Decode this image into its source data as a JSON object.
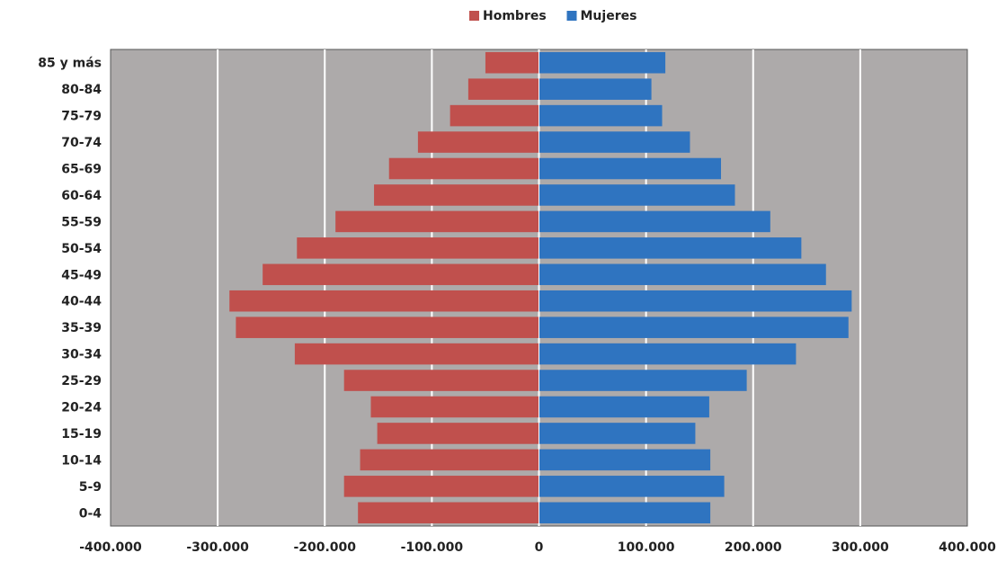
{
  "chart_data": {
    "type": "bar",
    "orientation": "horizontal",
    "stacked": "diverging",
    "title": "",
    "xlabel": "",
    "ylabel": "",
    "categories": [
      "85 y más",
      "80-84",
      "75-79",
      "70-74",
      "65-69",
      "60-64",
      "55-59",
      "50-54",
      "45-49",
      "40-44",
      "35-39",
      "30-34",
      "25-29",
      "20-24",
      "15-19",
      "10-14",
      "5-9",
      "0-4"
    ],
    "series": [
      {
        "name": "Hombres",
        "color": "#c0504d",
        "values": [
          -50000,
          -66000,
          -83000,
          -113000,
          -140000,
          -154000,
          -190000,
          -226000,
          -258000,
          -289000,
          -283000,
          -228000,
          -182000,
          -157000,
          -151000,
          -167000,
          -182000,
          -169000
        ]
      },
      {
        "name": "Mujeres",
        "color": "#2f74c0",
        "values": [
          118000,
          105000,
          115000,
          141000,
          170000,
          183000,
          216000,
          245000,
          268000,
          292000,
          289000,
          240000,
          194000,
          159000,
          146000,
          160000,
          173000,
          160000
        ]
      }
    ],
    "xlim": [
      -400000,
      400000
    ],
    "xticks": [
      -400000,
      -300000,
      -200000,
      -100000,
      0,
      100000,
      200000,
      300000,
      400000
    ],
    "xtick_labels": [
      "-400.000",
      "-300.000",
      "-200.000",
      "-100.000",
      "0",
      "100.000",
      "200.000",
      "300.000",
      "400.000"
    ],
    "grid": true,
    "legend_position": "top-center",
    "plot_background": "#adaaaa",
    "grid_color": "#ffffff"
  }
}
